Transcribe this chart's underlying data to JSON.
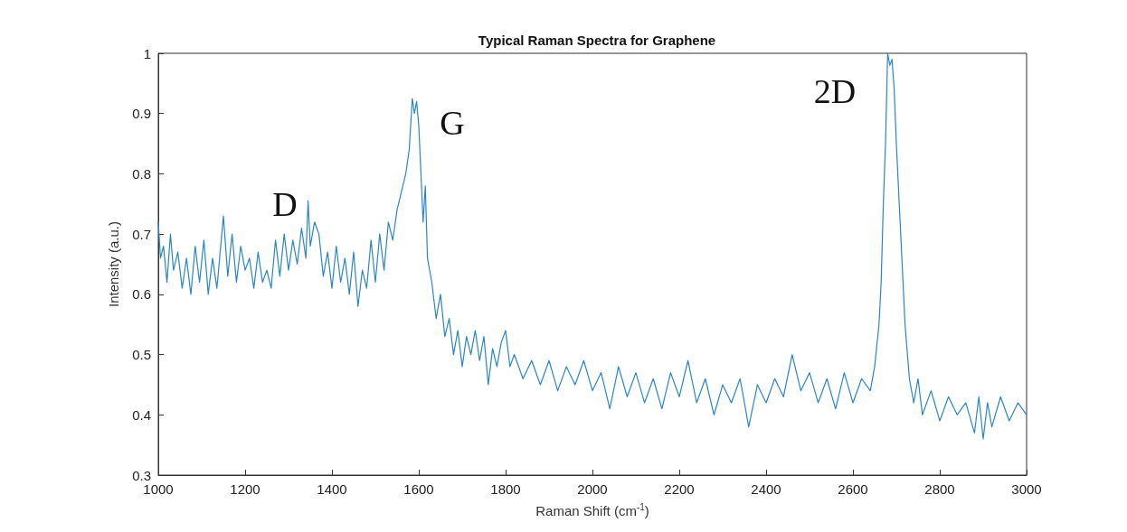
{
  "chart_data": {
    "type": "line",
    "title": "Typical Raman Spectra for Graphene",
    "xlabel": "Raman Shift (cm$^{-1}$)",
    "ylabel": "Intensity (a.u.)",
    "xlim": [
      1000,
      3000
    ],
    "xticks": [
      1000,
      1200,
      1400,
      1600,
      1800,
      2000,
      2200,
      2400,
      2600,
      2800,
      3000
    ],
    "ylim": [
      0.3,
      1
    ],
    "yticks": [
      0.3,
      0.4,
      0.5,
      0.6,
      0.7,
      0.8,
      0.9,
      1
    ],
    "grid": false,
    "marker": "none",
    "line_style": "solid",
    "annotations": [
      "D",
      "G",
      "2D"
    ],
    "series": [
      {
        "color": "#2b86c5",
        "x": [
          1000,
          1005,
          1012,
          1020,
          1028,
          1035,
          1045,
          1055,
          1065,
          1075,
          1085,
          1095,
          1105,
          1115,
          1125,
          1135,
          1150,
          1160,
          1170,
          1180,
          1190,
          1200,
          1210,
          1220,
          1230,
          1240,
          1250,
          1260,
          1270,
          1280,
          1290,
          1300,
          1310,
          1320,
          1330,
          1340,
          1345,
          1350,
          1360,
          1370,
          1380,
          1390,
          1400,
          1410,
          1420,
          1430,
          1440,
          1450,
          1460,
          1470,
          1480,
          1490,
          1500,
          1510,
          1520,
          1530,
          1540,
          1550,
          1560,
          1570,
          1578,
          1585,
          1590,
          1595,
          1600,
          1605,
          1610,
          1615,
          1620,
          1630,
          1640,
          1650,
          1660,
          1670,
          1680,
          1690,
          1700,
          1710,
          1720,
          1730,
          1740,
          1750,
          1760,
          1770,
          1780,
          1790,
          1800,
          1810,
          1820,
          1840,
          1860,
          1880,
          1900,
          1920,
          1940,
          1960,
          1980,
          2000,
          2020,
          2040,
          2060,
          2080,
          2100,
          2120,
          2140,
          2160,
          2180,
          2200,
          2220,
          2240,
          2260,
          2280,
          2300,
          2320,
          2340,
          2360,
          2380,
          2400,
          2420,
          2440,
          2460,
          2480,
          2500,
          2520,
          2540,
          2560,
          2580,
          2600,
          2620,
          2640,
          2650,
          2660,
          2665,
          2670,
          2675,
          2680,
          2685,
          2690,
          2695,
          2700,
          2710,
          2720,
          2730,
          2740,
          2750,
          2760,
          2780,
          2800,
          2820,
          2840,
          2860,
          2880,
          2890,
          2900,
          2910,
          2920,
          2940,
          2960,
          2980,
          3000
        ],
        "values": [
          0.72,
          0.66,
          0.68,
          0.62,
          0.7,
          0.64,
          0.67,
          0.61,
          0.66,
          0.6,
          0.68,
          0.62,
          0.69,
          0.6,
          0.66,
          0.61,
          0.73,
          0.63,
          0.7,
          0.62,
          0.68,
          0.64,
          0.66,
          0.61,
          0.67,
          0.62,
          0.64,
          0.61,
          0.69,
          0.63,
          0.7,
          0.64,
          0.69,
          0.65,
          0.71,
          0.66,
          0.755,
          0.68,
          0.72,
          0.7,
          0.63,
          0.67,
          0.61,
          0.68,
          0.62,
          0.66,
          0.6,
          0.67,
          0.58,
          0.64,
          0.61,
          0.69,
          0.62,
          0.7,
          0.64,
          0.72,
          0.69,
          0.74,
          0.77,
          0.8,
          0.84,
          0.925,
          0.9,
          0.92,
          0.88,
          0.8,
          0.72,
          0.78,
          0.66,
          0.62,
          0.56,
          0.6,
          0.53,
          0.56,
          0.5,
          0.54,
          0.48,
          0.53,
          0.5,
          0.54,
          0.49,
          0.53,
          0.45,
          0.51,
          0.48,
          0.52,
          0.54,
          0.48,
          0.5,
          0.46,
          0.49,
          0.45,
          0.49,
          0.44,
          0.48,
          0.45,
          0.49,
          0.44,
          0.47,
          0.41,
          0.48,
          0.43,
          0.47,
          0.42,
          0.46,
          0.41,
          0.47,
          0.43,
          0.49,
          0.42,
          0.46,
          0.4,
          0.45,
          0.42,
          0.46,
          0.38,
          0.45,
          0.42,
          0.46,
          0.43,
          0.5,
          0.44,
          0.47,
          0.42,
          0.46,
          0.41,
          0.47,
          0.42,
          0.46,
          0.44,
          0.48,
          0.55,
          0.62,
          0.75,
          0.85,
          1,
          0.98,
          0.99,
          0.94,
          0.85,
          0.7,
          0.55,
          0.46,
          0.42,
          0.46,
          0.4,
          0.44,
          0.39,
          0.43,
          0.4,
          0.42,
          0.37,
          0.43,
          0.36,
          0.42,
          0.38,
          0.43,
          0.39,
          0.42,
          0.4
        ]
      }
    ]
  }
}
